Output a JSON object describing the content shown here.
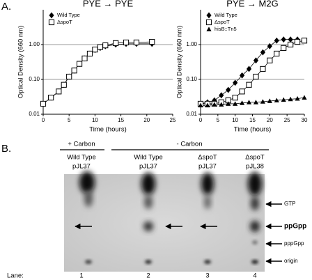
{
  "panel_a_label": "A.",
  "chart_data": [
    {
      "type": "line",
      "title": "PYE → PYE",
      "x_label": "Time (hours)",
      "y_label": "Optical Density (660 nm)",
      "xlim": [
        0,
        25
      ],
      "xticks": [
        0,
        5,
        10,
        15,
        20,
        25
      ],
      "ylim": [
        0.01,
        10
      ],
      "log_y": true,
      "grid": true,
      "legend": "upper left",
      "yticks": [
        0.01,
        {
          "value": 0.1,
          "label": "0.10"
        },
        {
          "value": 1,
          "label": "1.00"
        }
      ],
      "series": [
        {
          "name": "Wild Type",
          "color": "#000000",
          "marker": "diamond",
          "x": [
            0,
            1.5,
            3,
            4,
            5,
            6,
            7,
            8,
            9,
            10,
            11,
            12,
            14,
            16,
            18,
            21
          ],
          "values": [
            0.02,
            0.03,
            0.045,
            0.07,
            0.12,
            0.18,
            0.28,
            0.4,
            0.55,
            0.7,
            0.8,
            0.9,
            1.0,
            1.05,
            1.05,
            1.05
          ]
        },
        {
          "name": "ΔspoT",
          "color": "#000000",
          "marker": "square",
          "x": [
            0,
            1.5,
            3,
            4,
            5,
            6,
            7,
            8,
            9,
            10,
            11,
            12,
            14,
            16,
            18,
            21
          ],
          "values": [
            0.02,
            0.03,
            0.045,
            0.07,
            0.12,
            0.18,
            0.28,
            0.4,
            0.55,
            0.72,
            0.85,
            0.95,
            1.1,
            1.15,
            1.15,
            1.2
          ]
        }
      ]
    },
    {
      "type": "line",
      "title": "PYE → M2G",
      "x_label": "Time (hours)",
      "y_label": "Optical Density (660 nm)",
      "xlim": [
        0,
        30
      ],
      "xticks": [
        0,
        5,
        10,
        15,
        20,
        25,
        30
      ],
      "ylim": [
        0.01,
        10
      ],
      "log_y": true,
      "grid": true,
      "legend": "upper left",
      "yticks": [
        0.01,
        {
          "value": 0.1,
          "label": "0.10"
        },
        {
          "value": 1,
          "label": "1.00"
        }
      ],
      "series": [
        {
          "name": "Wild Type",
          "color": "#000000",
          "marker": "diamond",
          "x": [
            0,
            2,
            4,
            6,
            8,
            10,
            12,
            14,
            16,
            18,
            20,
            22,
            24,
            26,
            28
          ],
          "values": [
            0.02,
            0.022,
            0.025,
            0.035,
            0.05,
            0.08,
            0.13,
            0.2,
            0.35,
            0.6,
            0.9,
            1.3,
            1.4,
            1.4,
            1.4
          ]
        },
        {
          "name": "ΔspoT",
          "color": "#000000",
          "marker": "square",
          "x": [
            0,
            2,
            4,
            6,
            8,
            10,
            12,
            14,
            16,
            18,
            20,
            22,
            24,
            26,
            28,
            30
          ],
          "values": [
            0.02,
            0.02,
            0.02,
            0.022,
            0.025,
            0.03,
            0.045,
            0.07,
            0.12,
            0.2,
            0.35,
            0.55,
            0.8,
            1.0,
            1.2,
            1.3
          ]
        },
        {
          "name": "hisB::Tn5",
          "color": "#000000",
          "marker": "triangle",
          "x": [
            0,
            2,
            4,
            6,
            8,
            10,
            12,
            14,
            16,
            18,
            20,
            22,
            24,
            26,
            28,
            30
          ],
          "values": [
            0.018,
            0.018,
            0.019,
            0.019,
            0.02,
            0.02,
            0.021,
            0.022,
            0.022,
            0.023,
            0.024,
            0.025,
            0.026,
            0.027,
            0.028,
            0.03
          ]
        }
      ]
    }
  ],
  "panel_b": {
    "label": "B.",
    "groups": [
      "+ Carbon",
      "- Carbon"
    ],
    "lanes": [
      {
        "strain": "Wild Type",
        "plasmid": "pJL37",
        "number": 1
      },
      {
        "strain": "Wild Type",
        "plasmid": "pJL37",
        "number": 2
      },
      {
        "strain": "ΔspoT",
        "plasmid": "pJL37",
        "number": 3
      },
      {
        "strain": "ΔspoT",
        "plasmid": "pJL38",
        "number": 4
      }
    ],
    "lane_heading": "Lane:",
    "markers": [
      "GTP",
      "ppGpp",
      "pppGpp",
      "origin"
    ]
  }
}
